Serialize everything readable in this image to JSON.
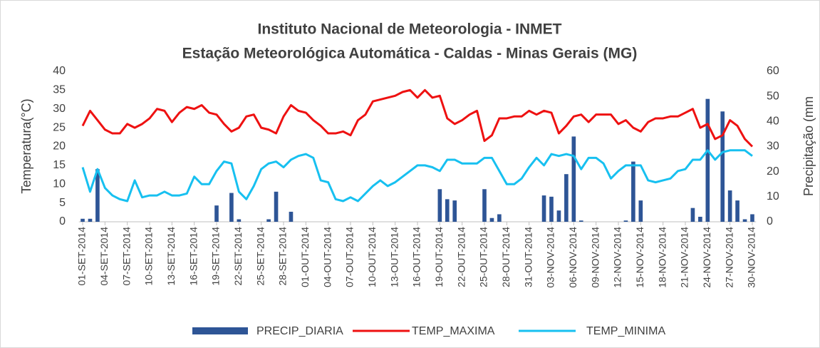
{
  "chart_data": {
    "type": "combo",
    "title": "Instituto Nacional de Meteorologia - INMET",
    "subtitle": "Estação Meteorológica Automática - Caldas - Minas Gerais (MG)",
    "y_label": "Temperatura(°C)",
    "y2_label": "Precipitação (mm",
    "categories": [
      "01-SET-2014",
      null,
      null,
      "04-SET-2014",
      null,
      null,
      "07-SET-2014",
      null,
      null,
      "10-SET-2014",
      null,
      null,
      "13-SET-2014",
      null,
      null,
      "16-SET-2014",
      null,
      null,
      "19-SET-2014",
      null,
      null,
      "22-SET-2014",
      null,
      null,
      "25-SET-2014",
      null,
      null,
      "28-SET-2014",
      null,
      null,
      "01-OUT-2014",
      null,
      null,
      "04-OUT-2014",
      null,
      null,
      "07-OUT-2014",
      null,
      null,
      "10-OUT-2014",
      null,
      null,
      "13-OUT-2014",
      null,
      null,
      "16-OUT-2014",
      null,
      null,
      "19-OUT-2014",
      null,
      null,
      "22-OUT-2014",
      null,
      null,
      "25-OUT-2014",
      null,
      null,
      "28-OUT-2014",
      null,
      null,
      "31-OUT-2014",
      null,
      null,
      "03-NOV-2014",
      null,
      null,
      "06-NOV-2014",
      null,
      null,
      "09-NOV-2014",
      null,
      null,
      "12-NOV-2014",
      null,
      null,
      "15-NOV-2014",
      null,
      null,
      "18-NOV-2014",
      null,
      null,
      "21-NOV-2014",
      null,
      null,
      "24-NOV-2014",
      null,
      null,
      "27-NOV-2014",
      null,
      null,
      "30-NOV-2014"
    ],
    "series": [
      {
        "name": "PRECIP_DIARIA",
        "type": "bar",
        "axis": "y2",
        "color": "#2e5596",
        "values": [
          1.2,
          1.2,
          21,
          0,
          0,
          0,
          0,
          0,
          0,
          0,
          0,
          0,
          0,
          0,
          0,
          0,
          0,
          0,
          6.5,
          0,
          11.5,
          1,
          0,
          0,
          0,
          1,
          12,
          0,
          4,
          0,
          0,
          0,
          0,
          0,
          0,
          0,
          0,
          0,
          0,
          0,
          0,
          0,
          0,
          0,
          0,
          0,
          0,
          0,
          13,
          9,
          8.5,
          0,
          0,
          0,
          13,
          1.5,
          3,
          0,
          0,
          0,
          0,
          0,
          10.5,
          10,
          4.5,
          19,
          34,
          0.5,
          0,
          0,
          0,
          0,
          0,
          0.5,
          24,
          8.5,
          0,
          0,
          0,
          0,
          0,
          0,
          5.5,
          2,
          49,
          0,
          44,
          12.5,
          8.5,
          1,
          3
        ]
      },
      {
        "name": "TEMP_MAXIMA",
        "type": "line",
        "color": "#ee1111",
        "values": [
          25.5,
          29.5,
          27,
          24.5,
          23.5,
          23.5,
          26,
          25,
          26,
          27.5,
          30,
          29.5,
          26.5,
          29,
          30.5,
          30,
          31,
          29,
          28.5,
          26,
          24,
          25,
          28,
          28.5,
          25,
          24.5,
          23.5,
          28,
          31,
          29.5,
          29,
          27,
          25.5,
          23.5,
          23.5,
          24,
          23,
          27,
          28.5,
          32,
          32.5,
          33,
          33.5,
          34.5,
          35,
          33,
          35,
          33,
          33.5,
          27.5,
          26,
          27,
          28.5,
          29.5,
          21.5,
          23,
          27.5,
          27.5,
          28,
          28,
          29.5,
          28.5,
          29.5,
          29,
          23.5,
          25.5,
          28,
          28.5,
          26.5,
          28.5,
          28.5,
          28.5,
          26,
          27,
          25,
          24,
          26.5,
          27.5,
          27.5,
          28,
          28,
          29,
          30,
          25,
          26,
          22,
          23,
          27,
          25.5,
          22,
          20
        ]
      },
      {
        "name": "TEMP_MINIMA",
        "type": "line",
        "color": "#17c0f0",
        "values": [
          14.5,
          8,
          14,
          9,
          7,
          6,
          5.5,
          11,
          6.5,
          7,
          7,
          8,
          7,
          7,
          7.5,
          12,
          10,
          10,
          13.5,
          16,
          15.5,
          8,
          6,
          9.5,
          14,
          15.5,
          16,
          14.5,
          16.5,
          17.5,
          18,
          17,
          11,
          10.5,
          6,
          5.5,
          6.5,
          5.5,
          7.5,
          9.5,
          11,
          9.5,
          10.5,
          12,
          13.5,
          15,
          15,
          14.5,
          13.5,
          16.5,
          16.5,
          15.5,
          15.5,
          15.5,
          17,
          17,
          13.5,
          10,
          10,
          11.5,
          14.5,
          17,
          15,
          18,
          17.5,
          18,
          17.5,
          14,
          17,
          17,
          15.5,
          11.5,
          13.5,
          15,
          15,
          15,
          11,
          10.5,
          11,
          11.5,
          13.5,
          14,
          16.5,
          16.5,
          19,
          16.5,
          18.5,
          19,
          19,
          19,
          17.5
        ]
      }
    ],
    "ylim": [
      0,
      40
    ],
    "yticks": [
      0,
      5,
      10,
      15,
      20,
      25,
      30,
      35,
      40
    ],
    "y2lim": [
      0,
      60
    ],
    "y2ticks": [
      0,
      10,
      20,
      30,
      40,
      50,
      60
    ],
    "legend": "bottom"
  }
}
